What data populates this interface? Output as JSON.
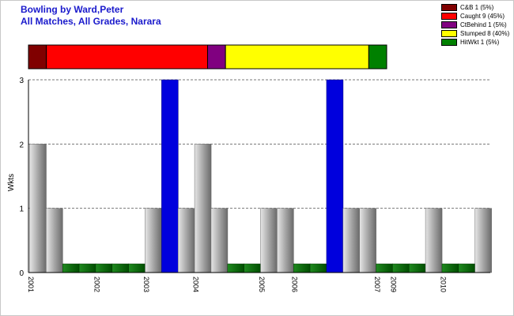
{
  "header": {
    "title_line1": "Bowling by Ward,Peter",
    "title_line2": "All Matches, All Grades, Narara"
  },
  "legend": {
    "items": [
      {
        "label": "C&B 1 (5%)",
        "color": "#800000"
      },
      {
        "label": "Caught 9 (45%)",
        "color": "#ff0000"
      },
      {
        "label": "CtBehind 1 (5%)",
        "color": "#800080"
      },
      {
        "label": "Stumped 8 (40%)",
        "color": "#ffff00"
      },
      {
        "label": "HitWkt 1 (5%)",
        "color": "#008000"
      }
    ]
  },
  "chart_data": {
    "type": "bar",
    "ylabel": "Wkts",
    "ylim": [
      0,
      3
    ],
    "yticks": [
      0,
      1,
      2,
      3
    ],
    "grid": true,
    "values": [
      2,
      1,
      0,
      0,
      0,
      0,
      0,
      1,
      3,
      1,
      2,
      1,
      0,
      0,
      1,
      1,
      0,
      0,
      3,
      1,
      1,
      0,
      0,
      0,
      1,
      0,
      0,
      1
    ],
    "highlight_color": "#0000dd",
    "bar_color": "#a0a0a0",
    "zero_color": "#006400",
    "year_labels": [
      {
        "index": 0,
        "label": "2001"
      },
      {
        "index": 4,
        "label": "2002"
      },
      {
        "index": 7,
        "label": "2003"
      },
      {
        "index": 10,
        "label": "2004"
      },
      {
        "index": 14,
        "label": "2005"
      },
      {
        "index": 16,
        "label": "2006"
      },
      {
        "index": 21,
        "label": "2007"
      },
      {
        "index": 22,
        "label": "2009"
      },
      {
        "index": 25,
        "label": "2010"
      }
    ],
    "dismissals": [
      {
        "label": "C&B",
        "count": 1,
        "color": "#800000"
      },
      {
        "label": "Caught",
        "count": 9,
        "color": "#ff0000"
      },
      {
        "label": "CtBehind",
        "count": 1,
        "color": "#800080"
      },
      {
        "label": "Stumped",
        "count": 8,
        "color": "#ffff00"
      },
      {
        "label": "HitWkt",
        "count": 1,
        "color": "#008000"
      }
    ]
  }
}
